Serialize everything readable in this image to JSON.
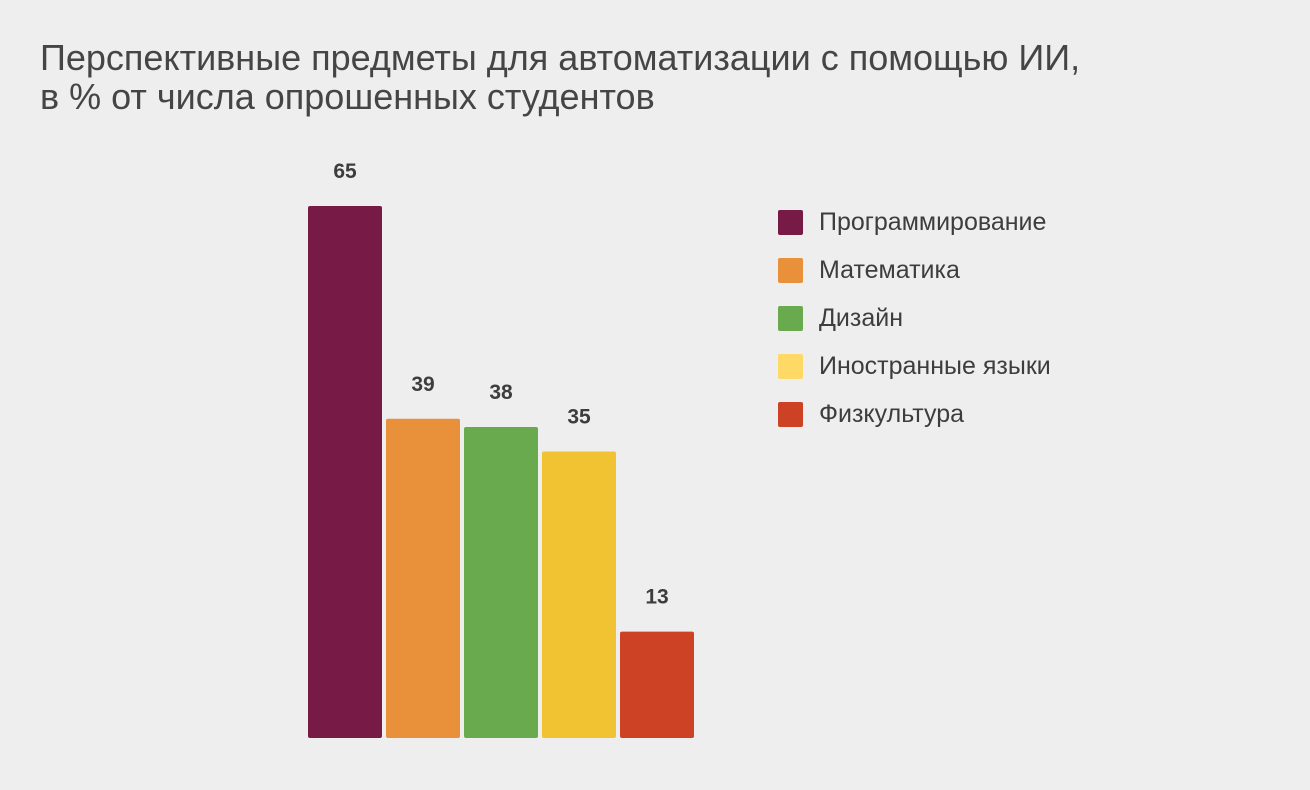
{
  "chart_data": {
    "type": "bar",
    "title_lines": [
      "Перспективные предметы для автоматизации с помощью ИИ,",
      "в % от числа опрошенных студентов"
    ],
    "categories": [
      "Программирование",
      "Математика",
      "Дизайн",
      "Иностранные языки",
      "Физкультура"
    ],
    "values": [
      65,
      39,
      38,
      35,
      13
    ],
    "bar_colors": [
      "#771a45",
      "#e8903a",
      "#6aaa4f",
      "#f1c232",
      "#cd4125"
    ],
    "legend_colors": [
      "#771a45",
      "#e8903a",
      "#6aaa4f",
      "#ffd966",
      "#cd4125"
    ],
    "legend_position": "right",
    "data_labels": true,
    "grid": false,
    "ylim": [
      0,
      65
    ]
  }
}
